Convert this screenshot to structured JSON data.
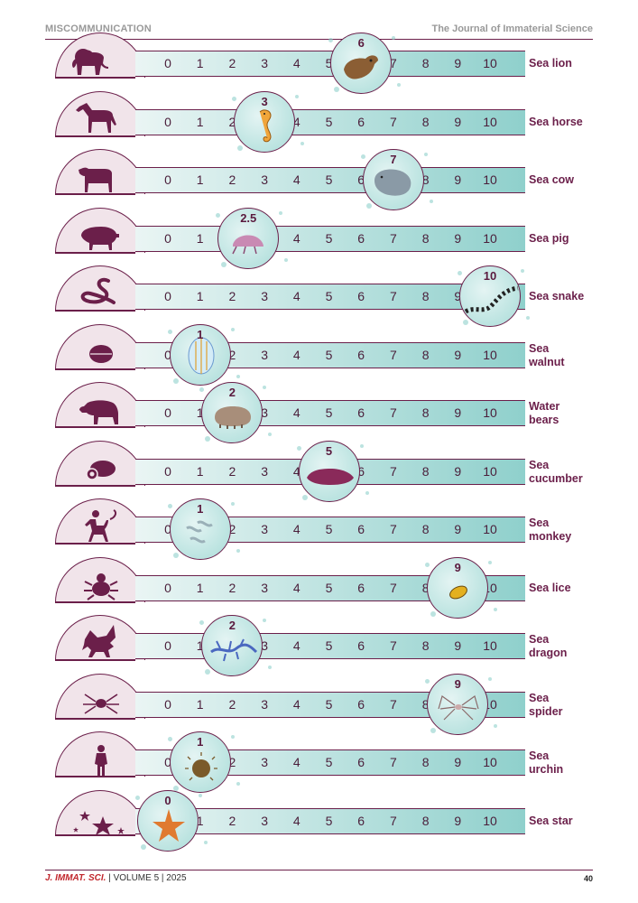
{
  "header": {
    "section": "MISCOMMUNICATION",
    "journal": "The Journal of Immaterial Science"
  },
  "footer": {
    "journal_abbrev": "J. IMMAT. SCI.",
    "rest": " | VOLUME 5 | 2025",
    "page_number": "40"
  },
  "scale_ticks": [
    "0",
    "1",
    "2",
    "3",
    "4",
    "5",
    "6",
    "7",
    "8",
    "9",
    "10"
  ],
  "colors": {
    "maroon": "#6b1f4a",
    "teal": "#8fd0cc",
    "dome_fill": "#f1e4ea"
  },
  "rows": [
    {
      "land_icon": "lion-icon",
      "creature_icon": "sea-lion-icon",
      "score_label": "6",
      "score": 6,
      "name_lines": [
        "Sea lion"
      ]
    },
    {
      "land_icon": "horse-icon",
      "creature_icon": "seahorse-icon",
      "score_label": "3",
      "score": 3,
      "name_lines": [
        "Sea horse"
      ]
    },
    {
      "land_icon": "cow-icon",
      "creature_icon": "manatee-icon",
      "score_label": "7",
      "score": 7,
      "name_lines": [
        "Sea cow"
      ]
    },
    {
      "land_icon": "pig-icon",
      "creature_icon": "sea-pig-icon",
      "score_label": "2.5",
      "score": 2.5,
      "name_lines": [
        "Sea pig"
      ]
    },
    {
      "land_icon": "snake-icon",
      "creature_icon": "sea-snake-icon",
      "score_label": "10",
      "score": 10,
      "name_lines": [
        "Sea snake"
      ]
    },
    {
      "land_icon": "walnut-icon",
      "creature_icon": "comb-jelly-icon",
      "score_label": "1",
      "score": 1,
      "name_lines": [
        "Sea",
        "walnut"
      ]
    },
    {
      "land_icon": "bear-icon",
      "creature_icon": "tardigrade-icon",
      "score_label": "2",
      "score": 2,
      "name_lines": [
        "Water",
        "bears"
      ]
    },
    {
      "land_icon": "cucumber-icon",
      "creature_icon": "sea-cucumber-icon",
      "score_label": "5",
      "score": 5,
      "name_lines": [
        "Sea",
        "cucumber"
      ]
    },
    {
      "land_icon": "monkey-icon",
      "creature_icon": "brine-shrimp-icon",
      "score_label": "1",
      "score": 1,
      "name_lines": [
        "Sea",
        "monkey"
      ]
    },
    {
      "land_icon": "louse-icon",
      "creature_icon": "isopod-icon",
      "score_label": "9",
      "score": 9,
      "name_lines": [
        "Sea lice"
      ]
    },
    {
      "land_icon": "dragon-icon",
      "creature_icon": "sea-dragon-icon",
      "score_label": "2",
      "score": 2,
      "name_lines": [
        "Sea",
        "dragon"
      ]
    },
    {
      "land_icon": "spider-icon",
      "creature_icon": "sea-spider-icon",
      "score_label": "9",
      "score": 9,
      "name_lines": [
        "Sea",
        "spider"
      ]
    },
    {
      "land_icon": "child-icon",
      "creature_icon": "sea-urchin-icon",
      "score_label": "1",
      "score": 1,
      "name_lines": [
        "Sea",
        "urchin"
      ]
    },
    {
      "land_icon": "stars-icon",
      "creature_icon": "starfish-icon",
      "score_label": "0",
      "score": 0,
      "name_lines": [
        "Sea star"
      ]
    }
  ]
}
